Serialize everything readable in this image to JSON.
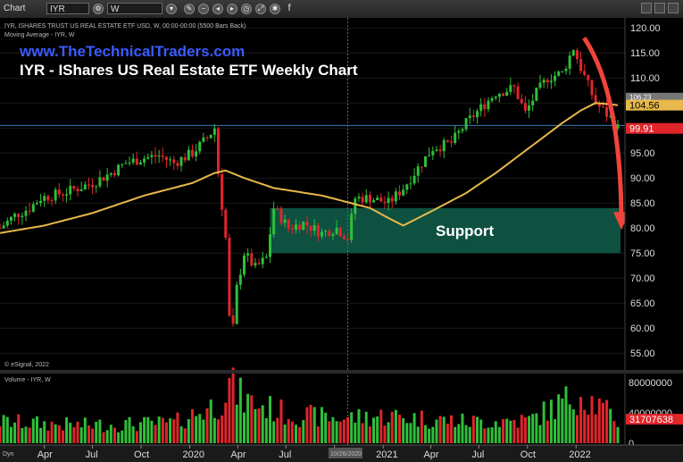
{
  "toolbar": {
    "chart_label": "Chart",
    "symbol": "IYR",
    "interval": "W"
  },
  "header": {
    "instrument_line": "IYR, ISHARES TRUST US REAL ESTATE ETF USD, W, 00:00-00:00 (5500 Bars Back)",
    "ma_line": "Moving Average - IYR, W",
    "website": "www.TheTechnicalTraders.com",
    "title": "IYR - IShares US Real Estate ETF Weekly Chart",
    "copyright": "© eSignal, 2022",
    "volume_label": "Volume - IYR, W",
    "bottom_left": "Dyn",
    "date_marker": "10/26/2020"
  },
  "colors": {
    "up": "#2fbf3a",
    "down": "#e0252b",
    "ma": "#e8b84a",
    "support_zone": "#0f5a48",
    "arrow": "#f0443a",
    "hline": "#3a78c0"
  },
  "chart_data": {
    "type": "candlestick",
    "price_axis": {
      "ticks": [
        "120.00",
        "115.00",
        "110.00",
        "105.00",
        "100.00",
        "95.00",
        "90.00",
        "85.00",
        "80.00",
        "75.00",
        "70.00",
        "65.00",
        "60.00",
        "55.00"
      ],
      "ylim": [
        52,
        122
      ]
    },
    "price_badges": [
      {
        "label": "106.23",
        "value": 106.23,
        "color": "#777777"
      },
      {
        "label": "104.56",
        "value": 104.56,
        "color": "#e8b84a"
      },
      {
        "label": "99.91",
        "value": 99.91,
        "color": "#e0252b"
      }
    ],
    "horizontal_line": 100.5,
    "support_zone": {
      "label": "Support",
      "from_date": "2020-06-01",
      "to_date": "2022-03-21",
      "low": 75,
      "high": 84
    },
    "volume_axis": {
      "ticks": [
        "80000000",
        "40000000",
        "0"
      ],
      "max": 85000000
    },
    "volume_badge": {
      "label": "31707638",
      "value": 31707638
    },
    "x_labels": [
      "Apr",
      "Jul",
      "Oct",
      "2020",
      "Apr",
      "Jul",
      "Oct",
      "2021",
      "Apr",
      "Jul",
      "Oct",
      "2022"
    ],
    "x_range": [
      "2019-01-07",
      "2022-03-21"
    ],
    "price_path": [
      [
        "2019-01-07",
        80
      ],
      [
        "2019-02-04",
        82.5
      ],
      [
        "2019-03-04",
        84
      ],
      [
        "2019-03-25",
        86
      ],
      [
        "2019-05-06",
        87
      ],
      [
        "2019-06-03",
        88
      ],
      [
        "2019-07-01",
        89
      ],
      [
        "2019-08-05",
        91
      ],
      [
        "2019-09-02",
        93
      ],
      [
        "2019-10-07",
        94
      ],
      [
        "2019-11-04",
        94.5
      ],
      [
        "2019-12-02",
        93
      ],
      [
        "2020-01-06",
        95
      ],
      [
        "2020-02-03",
        98
      ],
      [
        "2020-02-17",
        100
      ],
      [
        "2020-02-24",
        91
      ],
      [
        "2020-03-09",
        78
      ],
      [
        "2020-03-16",
        62
      ],
      [
        "2020-03-23",
        60
      ],
      [
        "2020-03-30",
        68
      ],
      [
        "2020-04-13",
        75
      ],
      [
        "2020-05-04",
        72
      ],
      [
        "2020-05-25",
        74
      ],
      [
        "2020-06-08",
        84
      ],
      [
        "2020-07-06",
        80
      ],
      [
        "2020-08-03",
        81
      ],
      [
        "2020-09-07",
        79
      ],
      [
        "2020-10-05",
        80
      ],
      [
        "2020-10-26",
        78
      ],
      [
        "2020-11-09",
        86
      ],
      [
        "2020-12-07",
        86
      ],
      [
        "2021-01-11",
        85
      ],
      [
        "2021-02-08",
        88
      ],
      [
        "2021-03-08",
        92
      ],
      [
        "2021-04-05",
        96
      ],
      [
        "2021-05-10",
        97
      ],
      [
        "2021-06-07",
        101
      ],
      [
        "2021-07-05",
        104
      ],
      [
        "2021-08-02",
        107
      ],
      [
        "2021-09-06",
        108
      ],
      [
        "2021-09-27",
        103
      ],
      [
        "2021-10-18",
        107
      ],
      [
        "2021-11-08",
        110
      ],
      [
        "2021-12-06",
        111
      ],
      [
        "2021-12-27",
        116
      ],
      [
        "2022-01-10",
        112
      ],
      [
        "2022-02-07",
        105
      ],
      [
        "2022-03-07",
        102
      ],
      [
        "2022-03-21",
        99.91
      ]
    ],
    "ma_path": [
      [
        "2019-01-07",
        79
      ],
      [
        "2019-04-01",
        80.5
      ],
      [
        "2019-07-01",
        83
      ],
      [
        "2019-10-07",
        86.5
      ],
      [
        "2020-01-06",
        89
      ],
      [
        "2020-02-17",
        91
      ],
      [
        "2020-03-09",
        91.5
      ],
      [
        "2020-04-13",
        90
      ],
      [
        "2020-06-08",
        88
      ],
      [
        "2020-09-07",
        86.5
      ],
      [
        "2020-12-07",
        84
      ],
      [
        "2021-01-11",
        82
      ],
      [
        "2021-02-08",
        80.5
      ],
      [
        "2021-03-08",
        82
      ],
      [
        "2021-04-05",
        83.5
      ],
      [
        "2021-06-07",
        87
      ],
      [
        "2021-08-02",
        91
      ],
      [
        "2021-10-04",
        96
      ],
      [
        "2021-12-06",
        101
      ],
      [
        "2022-01-10",
        103.5
      ],
      [
        "2022-02-07",
        105
      ],
      [
        "2022-03-21",
        104.56
      ]
    ],
    "forecast_arrow": {
      "from": [
        "2021-12-27",
        118
      ],
      "to": [
        "2022-03-21",
        80
      ]
    },
    "volume_profile": [
      [
        "2019-01-07",
        30000000
      ],
      [
        "2019-06-03",
        25000000
      ],
      [
        "2019-12-02",
        28000000
      ],
      [
        "2020-02-24",
        55000000
      ],
      [
        "2020-03-16",
        82000000
      ],
      [
        "2020-04-13",
        60000000
      ],
      [
        "2020-07-06",
        40000000
      ],
      [
        "2020-10-05",
        35000000
      ],
      [
        "2021-01-11",
        38000000
      ],
      [
        "2021-06-07",
        30000000
      ],
      [
        "2021-10-04",
        32000000
      ],
      [
        "2022-01-10",
        70000000
      ],
      [
        "2022-03-21",
        31707638
      ]
    ]
  }
}
